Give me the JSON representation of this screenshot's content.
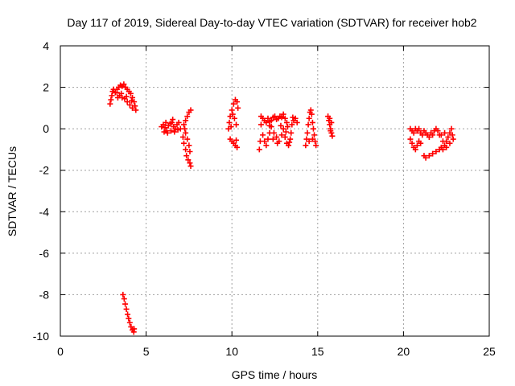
{
  "chart_data": {
    "type": "scatter",
    "title": "Day 117 of 2019, Sidereal Day-to-day VTEC variation (SDTVAR) for receiver hob2",
    "xlabel": "GPS time / hours",
    "ylabel": "SDTVAR / TECUs",
    "xlim": [
      0,
      25
    ],
    "ylim": [
      -10,
      4
    ],
    "xticks": [
      0,
      5,
      10,
      15,
      20,
      25
    ],
    "yticks": [
      -10,
      -8,
      -6,
      -4,
      -2,
      0,
      2,
      4
    ],
    "xtick_labels": [
      "0",
      "5",
      "10",
      "15",
      "20",
      "25"
    ],
    "ytick_labels": [
      "-10",
      "-8",
      "-6",
      "-4",
      "-2",
      "0",
      "2",
      "4"
    ],
    "grid": true,
    "marker": "+",
    "color": "#ff0000",
    "series": [
      {
        "name": "SDTVAR",
        "points": [
          [
            2.9,
            1.2
          ],
          [
            2.95,
            1.4
          ],
          [
            3.0,
            1.6
          ],
          [
            3.05,
            1.8
          ],
          [
            3.1,
            1.9
          ],
          [
            3.2,
            1.75
          ],
          [
            3.3,
            1.9
          ],
          [
            3.4,
            2.0
          ],
          [
            3.5,
            2.1
          ],
          [
            3.6,
            2.05
          ],
          [
            3.7,
            2.15
          ],
          [
            3.8,
            2.0
          ],
          [
            3.9,
            1.9
          ],
          [
            4.0,
            1.8
          ],
          [
            4.1,
            1.7
          ],
          [
            4.2,
            1.5
          ],
          [
            4.3,
            1.3
          ],
          [
            4.35,
            1.1
          ],
          [
            4.4,
            0.9
          ],
          [
            3.3,
            1.75
          ],
          [
            3.45,
            1.6
          ],
          [
            3.6,
            1.5
          ],
          [
            3.75,
            1.45
          ],
          [
            3.9,
            1.3
          ],
          [
            4.05,
            1.15
          ],
          [
            4.2,
            1.0
          ],
          [
            3.55,
            1.7
          ],
          [
            3.85,
            1.55
          ],
          [
            4.15,
            1.35
          ],
          [
            3.35,
            1.5
          ],
          [
            3.65,
            -8.0
          ],
          [
            3.72,
            -8.2
          ],
          [
            3.78,
            -8.45
          ],
          [
            3.85,
            -8.7
          ],
          [
            3.92,
            -8.95
          ],
          [
            3.98,
            -9.15
          ],
          [
            4.05,
            -9.35
          ],
          [
            4.12,
            -9.55
          ],
          [
            4.2,
            -9.7
          ],
          [
            4.28,
            -9.8
          ],
          [
            4.3,
            -9.65
          ],
          [
            5.9,
            0.1
          ],
          [
            6.0,
            0.2
          ],
          [
            6.1,
            0.05
          ],
          [
            6.2,
            -0.1
          ],
          [
            6.3,
            0.15
          ],
          [
            6.4,
            0.25
          ],
          [
            6.5,
            0.3
          ],
          [
            6.6,
            0.1
          ],
          [
            6.7,
            0.0
          ],
          [
            6.8,
            0.2
          ],
          [
            6.9,
            0.3
          ],
          [
            7.0,
            0.0
          ],
          [
            6.05,
            -0.15
          ],
          [
            6.25,
            -0.2
          ],
          [
            6.45,
            -0.1
          ],
          [
            6.65,
            -0.15
          ],
          [
            6.85,
            -0.05
          ],
          [
            6.15,
            0.3
          ],
          [
            6.55,
            0.45
          ],
          [
            7.2,
            0.2
          ],
          [
            7.3,
            0.4
          ],
          [
            7.4,
            0.6
          ],
          [
            7.5,
            0.8
          ],
          [
            7.6,
            0.9
          ],
          [
            7.15,
            -0.4
          ],
          [
            7.2,
            -0.7
          ],
          [
            7.3,
            -1.0
          ],
          [
            7.35,
            -1.3
          ],
          [
            7.45,
            -1.5
          ],
          [
            7.55,
            -1.65
          ],
          [
            7.6,
            -1.8
          ],
          [
            7.3,
            -0.2
          ],
          [
            7.4,
            -0.5
          ],
          [
            7.5,
            -0.8
          ],
          [
            7.55,
            -1.1
          ],
          [
            7.25,
            0.0
          ],
          [
            9.8,
            0.0
          ],
          [
            9.85,
            0.3
          ],
          [
            9.9,
            0.6
          ],
          [
            10.0,
            0.9
          ],
          [
            10.1,
            1.2
          ],
          [
            10.2,
            1.4
          ],
          [
            10.3,
            1.3
          ],
          [
            10.35,
            1.0
          ],
          [
            10.15,
            0.5
          ],
          [
            10.25,
            0.2
          ],
          [
            9.95,
            0.1
          ],
          [
            10.05,
            0.7
          ],
          [
            9.9,
            -0.5
          ],
          [
            10.0,
            -0.6
          ],
          [
            10.1,
            -0.7
          ],
          [
            10.2,
            -0.8
          ],
          [
            10.3,
            -0.9
          ],
          [
            10.25,
            -0.55
          ],
          [
            11.6,
            -1.0
          ],
          [
            11.65,
            -0.6
          ],
          [
            11.7,
            0.2
          ],
          [
            11.8,
            0.5
          ],
          [
            11.9,
            0.4
          ],
          [
            12.0,
            0.3
          ],
          [
            12.1,
            0.5
          ],
          [
            12.2,
            0.35
          ],
          [
            12.3,
            0.4
          ],
          [
            12.4,
            0.55
          ],
          [
            12.5,
            0.6
          ],
          [
            12.6,
            0.45
          ],
          [
            12.7,
            0.5
          ],
          [
            12.8,
            0.6
          ],
          [
            12.9,
            0.55
          ],
          [
            13.0,
            0.7
          ],
          [
            13.1,
            0.5
          ],
          [
            13.2,
            0.3
          ],
          [
            13.25,
            0.1
          ],
          [
            11.8,
            -0.3
          ],
          [
            11.9,
            -0.6
          ],
          [
            12.0,
            -0.8
          ],
          [
            12.1,
            -0.5
          ],
          [
            12.2,
            -0.2
          ],
          [
            12.3,
            0.1
          ],
          [
            12.45,
            -0.2
          ],
          [
            12.6,
            -0.4
          ],
          [
            12.75,
            -0.6
          ],
          [
            12.9,
            -0.3
          ],
          [
            13.0,
            0.0
          ],
          [
            13.1,
            -0.4
          ],
          [
            13.2,
            -0.7
          ],
          [
            13.3,
            -0.8
          ],
          [
            13.4,
            -0.5
          ],
          [
            13.45,
            -0.2
          ],
          [
            13.5,
            0.2
          ],
          [
            13.6,
            0.4
          ],
          [
            13.7,
            0.5
          ],
          [
            13.8,
            0.3
          ],
          [
            11.7,
            0.6
          ],
          [
            12.2,
            0.15
          ],
          [
            12.85,
            0.15
          ],
          [
            13.55,
            0.55
          ],
          [
            13.15,
            -0.15
          ],
          [
            12.4,
            -0.5
          ],
          [
            12.65,
            -0.7
          ],
          [
            13.35,
            -0.65
          ],
          [
            14.3,
            -0.8
          ],
          [
            14.35,
            -0.5
          ],
          [
            14.4,
            -0.2
          ],
          [
            14.45,
            0.2
          ],
          [
            14.5,
            0.5
          ],
          [
            14.55,
            0.8
          ],
          [
            14.6,
            0.9
          ],
          [
            14.65,
            0.7
          ],
          [
            14.7,
            0.3
          ],
          [
            14.75,
            0.0
          ],
          [
            14.8,
            -0.3
          ],
          [
            14.85,
            -0.6
          ],
          [
            14.9,
            -0.8
          ],
          [
            14.5,
            -0.6
          ],
          [
            14.7,
            -0.5
          ],
          [
            15.6,
            0.6
          ],
          [
            15.65,
            0.4
          ],
          [
            15.7,
            0.2
          ],
          [
            15.75,
            0.0
          ],
          [
            15.8,
            -0.2
          ],
          [
            15.85,
            -0.35
          ],
          [
            15.7,
            0.5
          ],
          [
            15.8,
            0.3
          ],
          [
            15.75,
            -0.1
          ],
          [
            20.4,
            0.0
          ],
          [
            20.5,
            -0.1
          ],
          [
            20.6,
            -0.2
          ],
          [
            20.7,
            0.0
          ],
          [
            20.8,
            -0.1
          ],
          [
            20.9,
            0.0
          ],
          [
            21.0,
            -0.2
          ],
          [
            21.1,
            -0.3
          ],
          [
            21.2,
            -0.1
          ],
          [
            21.3,
            -0.2
          ],
          [
            21.4,
            -0.3
          ],
          [
            21.5,
            -0.4
          ],
          [
            21.6,
            -0.2
          ],
          [
            21.7,
            -0.3
          ],
          [
            21.8,
            -0.1
          ],
          [
            21.9,
            0.0
          ],
          [
            22.0,
            -0.1
          ],
          [
            22.1,
            -0.3
          ],
          [
            20.4,
            -0.5
          ],
          [
            20.5,
            -0.7
          ],
          [
            20.6,
            -0.9
          ],
          [
            20.7,
            -1.0
          ],
          [
            20.8,
            -0.8
          ],
          [
            20.9,
            -0.6
          ],
          [
            21.0,
            -0.7
          ],
          [
            21.2,
            -1.3
          ],
          [
            21.3,
            -1.4
          ],
          [
            21.5,
            -1.3
          ],
          [
            21.7,
            -1.2
          ],
          [
            21.9,
            -1.1
          ],
          [
            22.1,
            -1.0
          ],
          [
            22.2,
            -0.9
          ],
          [
            22.3,
            -1.0
          ],
          [
            22.4,
            -0.8
          ],
          [
            22.5,
            -0.6
          ],
          [
            22.6,
            -0.4
          ],
          [
            22.7,
            -0.2
          ],
          [
            22.8,
            0.0
          ],
          [
            22.85,
            -0.3
          ],
          [
            22.9,
            -0.5
          ],
          [
            22.7,
            -0.7
          ],
          [
            22.5,
            -0.9
          ],
          [
            22.3,
            -0.6
          ],
          [
            22.2,
            -0.3
          ],
          [
            22.4,
            -0.2
          ]
        ]
      }
    ]
  }
}
